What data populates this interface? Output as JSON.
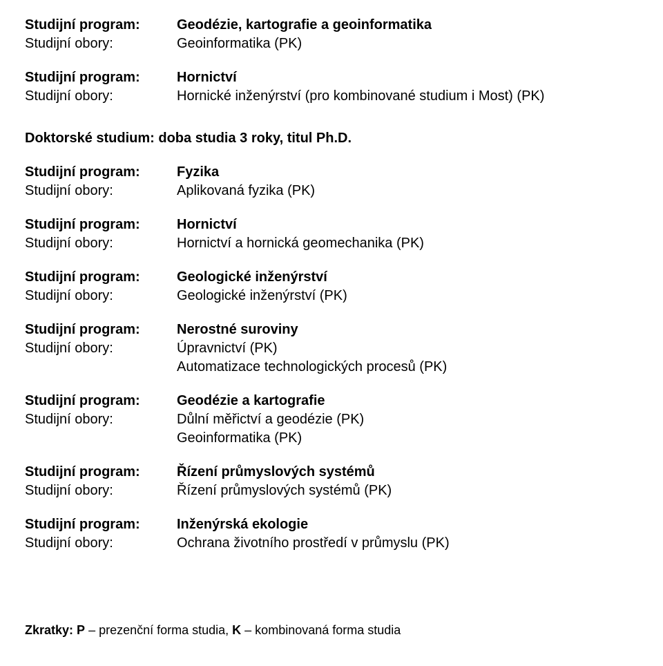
{
  "labels": {
    "program": "Studijní program:",
    "obory": "Studijní obory:"
  },
  "top": [
    {
      "program": "Geodézie, kartografie a geoinformatika",
      "obory": [
        "Geoinformatika (PK)"
      ]
    },
    {
      "program": "Hornictví",
      "obory": [
        "Hornické inženýrství (pro kombinované studium i Most) (PK)"
      ]
    }
  ],
  "doctoral_heading": "Doktorské studium: doba studia 3 roky, titul Ph.D.",
  "doctoral": [
    {
      "program": "Fyzika",
      "obory": [
        "Aplikovaná fyzika (PK)"
      ]
    },
    {
      "program": "Hornictví",
      "obory": [
        "Hornictví a hornická geomechanika (PK)"
      ]
    },
    {
      "program": "Geologické inženýrství",
      "obory": [
        "Geologické inženýrství (PK)"
      ]
    },
    {
      "program": "Nerostné suroviny",
      "obory": [
        "Úpravnictví (PK)",
        "Automatizace technologických procesů (PK)"
      ]
    },
    {
      "program": "Geodézie a kartografie",
      "obory": [
        "Důlní měřictví a geodézie (PK)",
        "Geoinformatika (PK)"
      ]
    },
    {
      "program": "Řízení průmyslových systémů",
      "obory": [
        "Řízení průmyslových systémů (PK)"
      ]
    },
    {
      "program": "Inženýrská ekologie",
      "obory": [
        "Ochrana životního prostředí v průmyslu (PK)"
      ]
    }
  ],
  "footer": {
    "prefix": "Zkratky:",
    "parts": [
      {
        "letter": "P",
        "sep": " – ",
        "text": "prezenční forma studia, "
      },
      {
        "letter": "K",
        "sep": " – ",
        "text": "kombinovaná forma studia"
      }
    ]
  }
}
